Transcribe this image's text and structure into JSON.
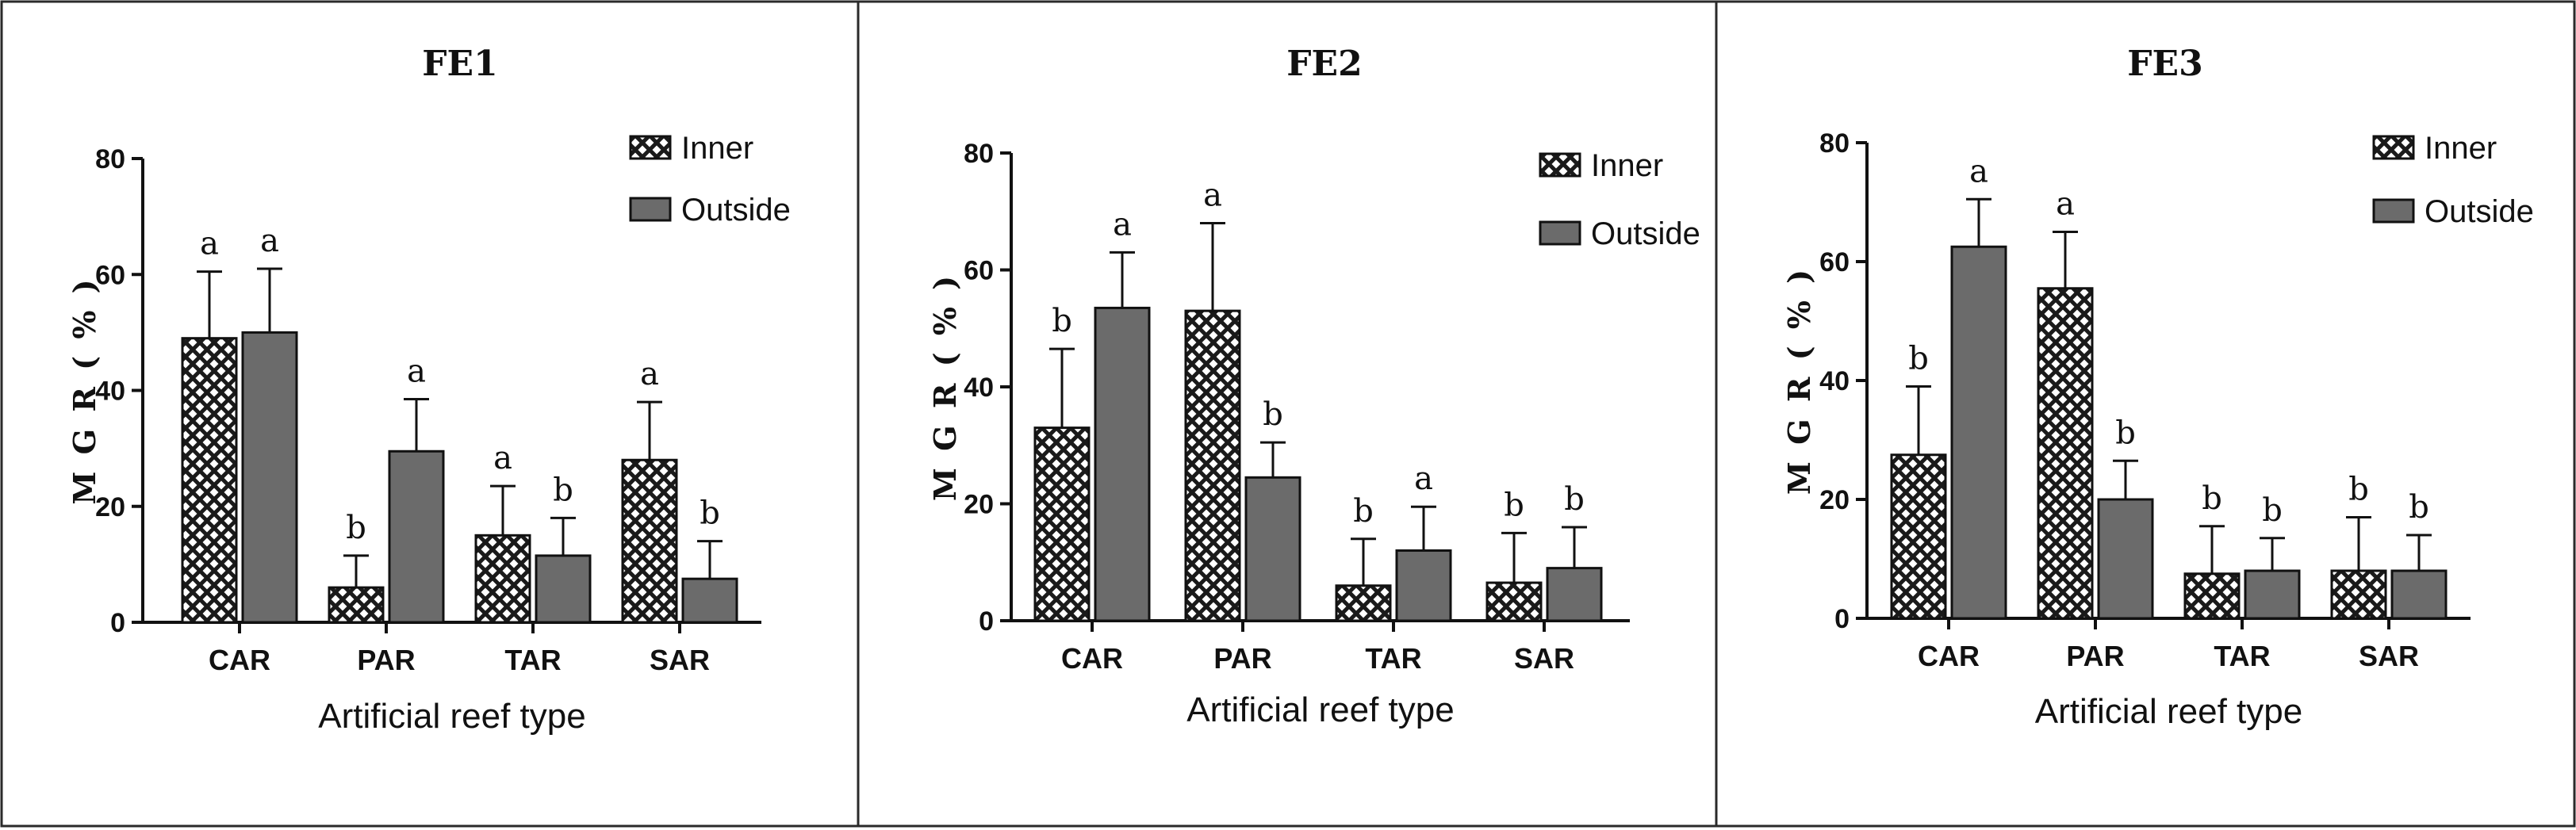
{
  "colors": {
    "inner_fill": "#ffffff",
    "inner_pattern": "#1a1a1a",
    "outside_fill": "#6b6b6b",
    "frame": "#2a2a2a"
  },
  "chart_data": [
    {
      "type": "bar",
      "title": "FE1",
      "xlabel": "Artificial reef type",
      "ylabel": "M G R ( % )",
      "categories": [
        "CAR",
        "PAR",
        "TAR",
        "SAR"
      ],
      "ylim": [
        0,
        80
      ],
      "yticks": [
        "0",
        "20",
        "40",
        "60",
        "80"
      ],
      "legend": "top-right",
      "series": [
        {
          "name": "Inner",
          "values": [
            49,
            6,
            15,
            28
          ],
          "errors": [
            11.5,
            5.5,
            8.5,
            10
          ],
          "labels": [
            "a",
            "b",
            "a",
            "a"
          ]
        },
        {
          "name": "Outside",
          "values": [
            50,
            29.5,
            11.5,
            7.5
          ],
          "errors": [
            11,
            9,
            6.5,
            6.5
          ],
          "labels": [
            "a",
            "a",
            "b",
            "b"
          ]
        }
      ]
    },
    {
      "type": "bar",
      "title": "FE2",
      "xlabel": "Artificial reef type",
      "ylabel": "M G R ( % )",
      "categories": [
        "CAR",
        "PAR",
        "TAR",
        "SAR"
      ],
      "ylim": [
        0,
        80
      ],
      "yticks": [
        "0",
        "20",
        "40",
        "60",
        "80"
      ],
      "legend": "top-right",
      "series": [
        {
          "name": "Inner",
          "values": [
            33,
            53,
            6,
            6.5
          ],
          "errors": [
            13.5,
            15,
            8,
            8.5
          ],
          "labels": [
            "b",
            "a",
            "b",
            "b"
          ]
        },
        {
          "name": "Outside",
          "values": [
            53.5,
            24.5,
            12,
            9
          ],
          "errors": [
            9.5,
            6,
            7.5,
            7
          ],
          "labels": [
            "a",
            "b",
            "a",
            "b"
          ]
        }
      ]
    },
    {
      "type": "bar",
      "title": "FE3",
      "xlabel": "Artificial reef type",
      "ylabel": "M G R ( % )",
      "categories": [
        "CAR",
        "PAR",
        "TAR",
        "SAR"
      ],
      "ylim": [
        0,
        80
      ],
      "yticks": [
        "0",
        "20",
        "40",
        "60",
        "80"
      ],
      "legend": "top-right",
      "series": [
        {
          "name": "Inner",
          "values": [
            27.5,
            55.5,
            7.5,
            8
          ],
          "errors": [
            11.5,
            9.5,
            8,
            9
          ],
          "labels": [
            "b",
            "a",
            "b",
            "b"
          ]
        },
        {
          "name": "Outside",
          "values": [
            62.5,
            20,
            8,
            8
          ],
          "errors": [
            8,
            6.5,
            5.5,
            6
          ],
          "labels": [
            "a",
            "b",
            "b",
            "b"
          ]
        }
      ]
    }
  ]
}
